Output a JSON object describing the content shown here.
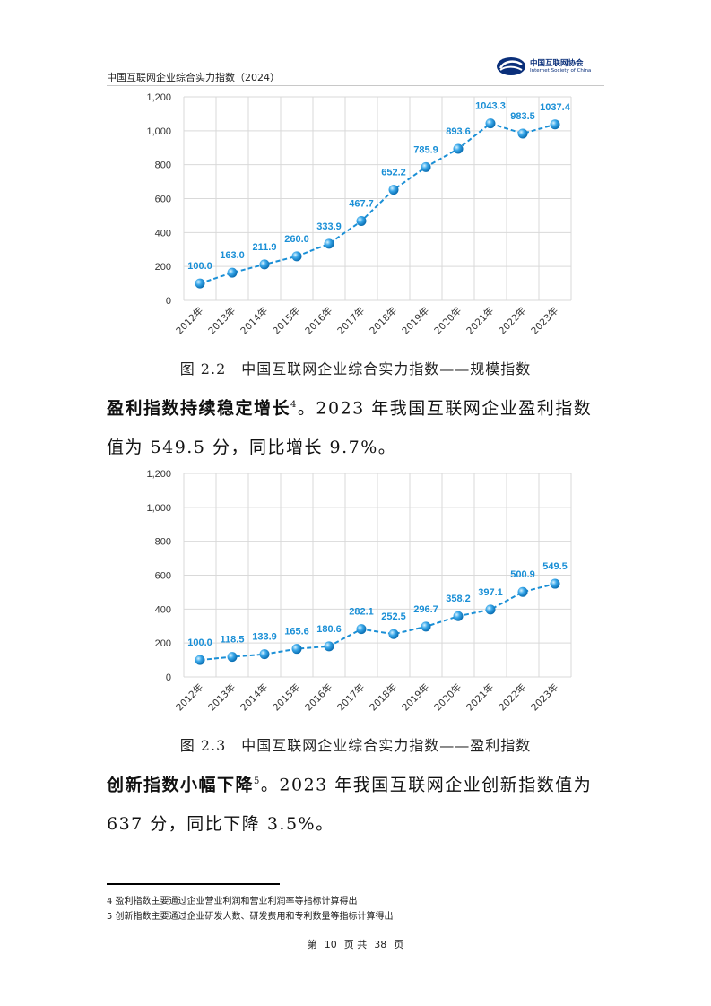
{
  "header": {
    "title": "中国互联网企业综合实力指数（2024）",
    "logo_cn": "中国互联网协会",
    "logo_en": "Internet Society of China",
    "logo_icon": "isc-logo-icon",
    "accent_color": "#0a2f7a"
  },
  "chart_data": [
    {
      "type": "line",
      "title": "",
      "categories": [
        "2012年",
        "2013年",
        "2014年",
        "2015年",
        "2016年",
        "2017年",
        "2018年",
        "2019年",
        "2020年",
        "2021年",
        "2022年",
        "2023年"
      ],
      "values": [
        100.0,
        163.0,
        211.9,
        260.0,
        333.9,
        467.7,
        652.2,
        785.9,
        893.6,
        1043.3,
        983.5,
        1037.4
      ],
      "value_labels": [
        "100.0",
        "163.0",
        "211.9",
        "260.0",
        "333.9",
        "467.7",
        "652.2",
        "785.9",
        "893.6",
        "1043.3",
        "983.5",
        "1037.4"
      ],
      "ylim": [
        0,
        1200
      ],
      "yticks": [
        0,
        200,
        400,
        600,
        800,
        1000,
        1200
      ],
      "ytick_labels": [
        "0",
        "200",
        "400",
        "600",
        "800",
        "1,000",
        "1,200"
      ],
      "grid": true,
      "line_style": "dashed",
      "color": "#1a8fd6"
    },
    {
      "type": "line",
      "title": "",
      "categories": [
        "2012年",
        "2013年",
        "2014年",
        "2015年",
        "2016年",
        "2017年",
        "2018年",
        "2019年",
        "2020年",
        "2021年",
        "2022年",
        "2023年"
      ],
      "values": [
        100.0,
        118.5,
        133.9,
        165.6,
        180.6,
        282.1,
        252.5,
        296.7,
        358.2,
        397.1,
        500.9,
        549.5
      ],
      "value_labels": [
        "100.0",
        "118.5",
        "133.9",
        "165.6",
        "180.6",
        "282.1",
        "252.5",
        "296.7",
        "358.2",
        "397.1",
        "500.9",
        "549.5"
      ],
      "ylim": [
        0,
        1200
      ],
      "yticks": [
        0,
        200,
        400,
        600,
        800,
        1000,
        1200
      ],
      "ytick_labels": [
        "0",
        "200",
        "400",
        "600",
        "800",
        "1,000",
        "1,200"
      ],
      "grid": true,
      "line_style": "dashed",
      "color": "#1a8fd6"
    }
  ],
  "captions": {
    "fig1": "图 2.2　中国互联网企业综合实力指数——规模指数",
    "fig2": "图 2.3　中国互联网企业综合实力指数——盈利指数"
  },
  "paragraphs": {
    "p1_bold": "盈利指数持续稳定增长",
    "p1_sup": "4",
    "p1_text": "。2023 年我国互联网企业盈利指数值为 549.5 分，同比增长 9.7%。",
    "p2_bold": "创新指数小幅下降",
    "p2_sup": "5",
    "p2_text": "。2023 年我国互联网企业创新指数值为 637 分，同比下降 3.5%。"
  },
  "footnotes": [
    "4  盈利指数主要通过企业营业利润和营业利润率等指标计算得出",
    "5  创新指数主要通过企业研发人数、研发费用和专利数量等指标计算得出"
  ],
  "page": {
    "label_before": "第",
    "current": "10",
    "label_mid": "页 共",
    "total": "38",
    "label_after": "页"
  }
}
